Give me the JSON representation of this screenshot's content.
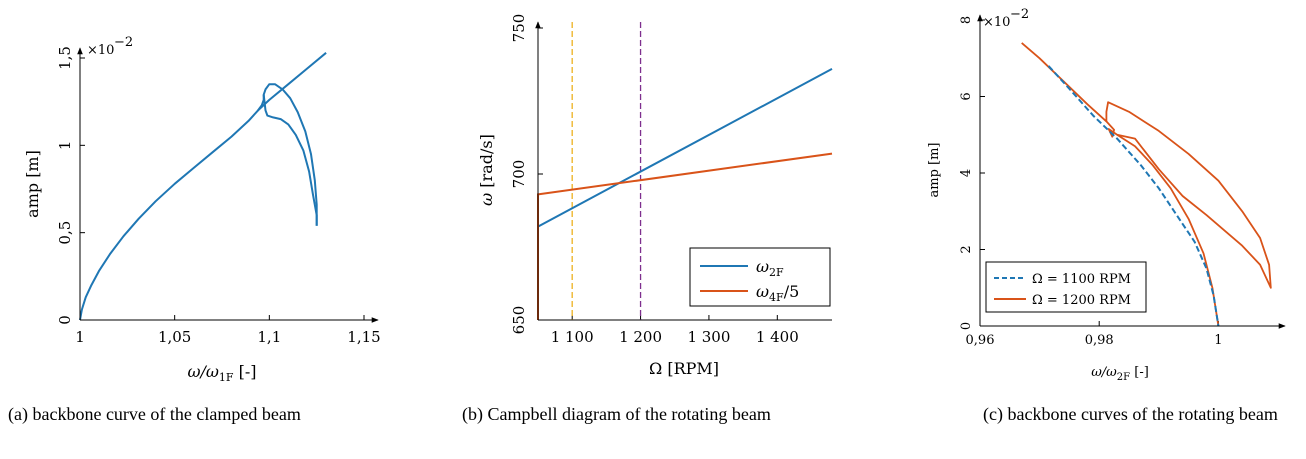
{
  "captions": {
    "a": "(a) backbone curve of the clamped beam",
    "b": "(b) Campbell diagram of the rotating beam",
    "c": "(c) backbone curves of the rotating beam"
  },
  "colors": {
    "blue": "#1f77b4",
    "orange": "#d95319",
    "yellow": "#edb120",
    "purple": "#7e2f8e"
  },
  "chart_data": [
    {
      "type": "line",
      "xlim": [
        1,
        1.15
      ],
      "ylim": [
        0,
        1.5
      ],
      "xticks": [
        "1",
        "1,05",
        "1,1",
        "1,15"
      ],
      "yticks": [
        "0",
        "0,5",
        "1",
        "1,5"
      ],
      "ylabel": "amp [m]",
      "xlabel_main": "ω/ω",
      "xlabel_sub": "1F",
      "xlabel_tail": " [-]",
      "exp_base": "×10",
      "exp_power": "−2",
      "series": [
        {
          "color": "#1f77b4",
          "points": [
            [
              1.0,
              0.0
            ],
            [
              1.001,
              0.06
            ],
            [
              1.003,
              0.13
            ],
            [
              1.006,
              0.2
            ],
            [
              1.01,
              0.28
            ],
            [
              1.016,
              0.38
            ],
            [
              1.023,
              0.48
            ],
            [
              1.031,
              0.58
            ],
            [
              1.04,
              0.68
            ],
            [
              1.05,
              0.78
            ],
            [
              1.06,
              0.87
            ],
            [
              1.07,
              0.96
            ],
            [
              1.08,
              1.05
            ],
            [
              1.089,
              1.14
            ],
            [
              1.094,
              1.2
            ],
            [
              1.096,
              1.23
            ],
            [
              1.097,
              1.26
            ],
            [
              1.097,
              1.29
            ],
            [
              1.098,
              1.32
            ],
            [
              1.1,
              1.35
            ],
            [
              1.103,
              1.35
            ],
            [
              1.107,
              1.32
            ],
            [
              1.111,
              1.27
            ],
            [
              1.115,
              1.19
            ],
            [
              1.119,
              1.08
            ],
            [
              1.122,
              0.95
            ],
            [
              1.124,
              0.8
            ],
            [
              1.125,
              0.66
            ],
            [
              1.125,
              0.54
            ]
          ]
        },
        {
          "color": "#1f77b4",
          "points": [
            [
              1.097,
              1.29
            ],
            [
              1.098,
              1.2
            ],
            [
              1.099,
              1.17
            ],
            [
              1.102,
              1.16
            ],
            [
              1.106,
              1.15
            ],
            [
              1.11,
              1.12
            ],
            [
              1.114,
              1.06
            ],
            [
              1.118,
              0.97
            ],
            [
              1.121,
              0.85
            ],
            [
              1.123,
              0.72
            ],
            [
              1.125,
              0.6
            ],
            [
              1.125,
              0.54
            ]
          ]
        },
        {
          "color": "#1f77b4",
          "points": [
            [
              1.094,
              1.2
            ],
            [
              1.1,
              1.26
            ],
            [
              1.11,
              1.35
            ],
            [
              1.12,
              1.44
            ],
            [
              1.13,
              1.53
            ]
          ]
        }
      ]
    },
    {
      "type": "line",
      "xlim": [
        1050,
        1480
      ],
      "ylim": [
        650,
        750
      ],
      "xticks": [
        "1 100",
        "1 200",
        "1 300",
        "1 400"
      ],
      "yticks": [
        "650",
        "700",
        "750"
      ],
      "xlabel": "Ω [RPM]",
      "ylabel_main": "ω",
      "ylabel_tail": " [rad/s]",
      "series": [
        {
          "name_main": "ω",
          "name_sub": "2F",
          "name_tail": "",
          "color": "#1f77b4",
          "points": [
            [
              1050,
              650
            ],
            [
              1050,
              682
            ],
            [
              1480,
              736
            ]
          ]
        },
        {
          "name_main": "ω",
          "name_sub": "4F",
          "name_tail": "/5",
          "color": "#d95319",
          "points": [
            [
              1050,
              650
            ],
            [
              1050,
              693
            ],
            [
              1480,
              707
            ]
          ]
        }
      ],
      "vlines": [
        {
          "x": 1100,
          "color": "#edb120"
        },
        {
          "x": 1200,
          "color": "#7e2f8e"
        }
      ],
      "legend_position": "lower-right"
    },
    {
      "type": "line",
      "xlim": [
        0.96,
        1.01
      ],
      "ylim": [
        0,
        8
      ],
      "xticks": [
        "0,96",
        "0,98",
        "1"
      ],
      "yticks": [
        "0",
        "2",
        "4",
        "6",
        "8"
      ],
      "ylabel": "amp [m]",
      "xlabel_main": "ω/ω",
      "xlabel_sub": "2F",
      "xlabel_tail": " [-]",
      "exp_base": "×10",
      "exp_power": "−2",
      "series": [
        {
          "name": "Ω = 1100 RPM",
          "color": "#1f77b4",
          "dashed": true,
          "points": [
            [
              0.9715,
              6.8
            ],
            [
              0.975,
              6.2
            ],
            [
              0.979,
              5.5
            ],
            [
              0.983,
              4.9
            ],
            [
              0.987,
              4.2
            ],
            [
              0.99,
              3.6
            ],
            [
              0.993,
              2.9
            ],
            [
              0.996,
              2.2
            ],
            [
              0.998,
              1.5
            ],
            [
              0.9992,
              0.8
            ],
            [
              1.0,
              0.0
            ]
          ]
        },
        {
          "name": "Ω = 1200 RPM",
          "color": "#d95319",
          "dashed": false,
          "points": [
            [
              0.967,
              7.4
            ],
            [
              0.97,
              7.0
            ],
            [
              0.974,
              6.4
            ],
            [
              0.978,
              5.8
            ],
            [
              0.9812,
              5.35
            ],
            [
              0.9825,
              5.13
            ],
            [
              0.9822,
              4.95
            ],
            [
              0.9816,
              5.15
            ],
            [
              0.983,
              5.0
            ],
            [
              0.986,
              4.7
            ],
            [
              0.989,
              4.2
            ],
            [
              0.992,
              3.6
            ],
            [
              0.995,
              2.8
            ],
            [
              0.9975,
              1.9
            ],
            [
              0.999,
              1.0
            ],
            [
              1.0,
              0.0
            ]
          ]
        },
        {
          "name": "",
          "color": "#d95319",
          "dashed": false,
          "points": [
            [
              0.9812,
              5.35
            ],
            [
              0.9812,
              5.6
            ],
            [
              0.9815,
              5.85
            ],
            [
              0.985,
              5.6
            ],
            [
              0.99,
              5.1
            ],
            [
              0.995,
              4.5
            ],
            [
              1.0,
              3.8
            ],
            [
              1.004,
              3.0
            ],
            [
              1.007,
              2.3
            ],
            [
              1.0085,
              1.6
            ],
            [
              1.0088,
              1.0
            ],
            [
              1.007,
              1.6
            ],
            [
              1.004,
              2.1
            ],
            [
              1.001,
              2.5
            ],
            [
              0.998,
              2.9
            ],
            [
              0.994,
              3.4
            ],
            [
              0.99,
              4.1
            ],
            [
              0.986,
              4.9
            ],
            [
              0.983,
              5.0
            ]
          ]
        }
      ],
      "legend_position": "lower-left"
    }
  ]
}
